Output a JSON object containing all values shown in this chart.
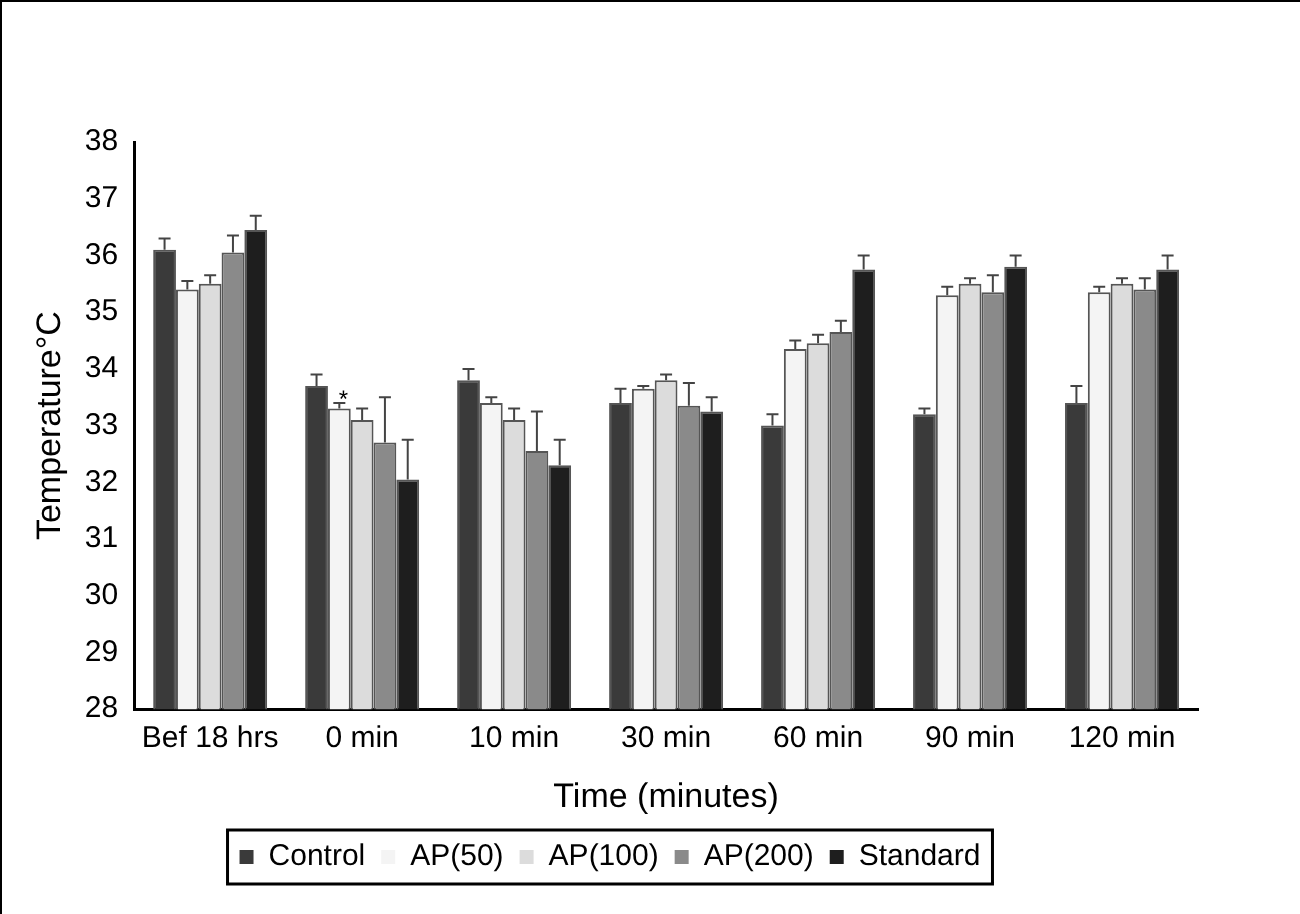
{
  "chart_data": {
    "type": "bar",
    "xlabel": "Time (minutes)",
    "ylabel": "Temperature°C",
    "categories": [
      "Bef 18 hrs",
      "0 min",
      "10 min",
      "30 min",
      "60 min",
      "90 min",
      "120 min"
    ],
    "series": [
      {
        "name": "Control",
        "color": "#3a3a3a",
        "values": [
          36.1,
          33.7,
          33.8,
          33.4,
          33.0,
          33.2,
          33.4
        ],
        "errors": [
          0.2,
          0.2,
          0.2,
          0.25,
          0.2,
          0.1,
          0.3
        ]
      },
      {
        "name": "AP(50)",
        "color": "#f4f4f4",
        "values": [
          35.4,
          33.3,
          33.4,
          33.65,
          34.35,
          35.3,
          35.35
        ],
        "errors": [
          0.15,
          0.1,
          0.1,
          0.05,
          0.15,
          0.15,
          0.1
        ]
      },
      {
        "name": "AP(100)",
        "color": "#dcdcdc",
        "values": [
          35.5,
          33.1,
          33.1,
          33.8,
          34.45,
          35.5,
          35.5
        ],
        "errors": [
          0.15,
          0.2,
          0.2,
          0.1,
          0.15,
          0.1,
          0.1
        ]
      },
      {
        "name": "AP(200)",
        "color": "#8a8a8a",
        "values": [
          36.05,
          32.7,
          32.55,
          33.35,
          34.65,
          35.35,
          35.4
        ],
        "errors": [
          0.3,
          0.8,
          0.7,
          0.4,
          0.2,
          0.3,
          0.2
        ]
      },
      {
        "name": "Standard",
        "color": "#1e1e1e",
        "values": [
          36.45,
          32.05,
          32.3,
          33.25,
          35.75,
          35.8,
          35.75
        ],
        "errors": [
          0.25,
          0.7,
          0.45,
          0.25,
          0.25,
          0.2,
          0.25
        ]
      }
    ],
    "annotations": [
      "*"
    ],
    "ylim": [
      28,
      38
    ],
    "yticks": [
      28,
      29,
      30,
      31,
      32,
      33,
      34,
      35,
      36,
      37,
      38
    ],
    "grid": false,
    "legend": "bottom"
  }
}
